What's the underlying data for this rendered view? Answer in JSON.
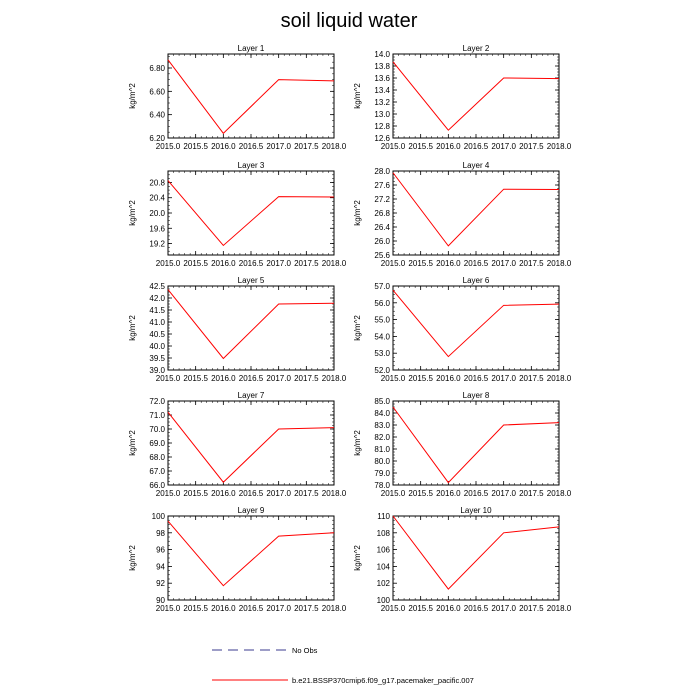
{
  "figure": {
    "title": "soil liquid water",
    "legend": [
      {
        "label": "No Obs",
        "style": "dashed",
        "color": "#3b3b8f"
      },
      {
        "label": "b.e21.BSSP370cmip6.f09_g17.pacemaker_pacific.007",
        "style": "solid",
        "color": "#ff0000"
      }
    ]
  },
  "chart_data": [
    {
      "type": "line",
      "title": "Layer 1",
      "ylabel": "kg/m^2",
      "x": [
        2015.0,
        2016.0,
        2017.0,
        2018.0
      ],
      "xlim": [
        2015.0,
        2018.0
      ],
      "xticks": [
        "2015.0",
        "2015.5",
        "2016.0",
        "2016.5",
        "2017.0",
        "2017.5",
        "2018.0"
      ],
      "ylim": [
        6.2,
        6.92
      ],
      "yticks": [
        "6.20",
        "6.40",
        "6.60",
        "6.80"
      ],
      "series": [
        {
          "color": "#ff0000",
          "values": [
            6.87,
            6.24,
            6.7,
            6.69
          ]
        }
      ]
    },
    {
      "type": "line",
      "title": "Layer 2",
      "ylabel": "kg/m^2",
      "x": [
        2015.0,
        2016.0,
        2017.0,
        2018.0
      ],
      "xlim": [
        2015.0,
        2018.0
      ],
      "xticks": [
        "2015.0",
        "2015.5",
        "2016.0",
        "2016.5",
        "2017.0",
        "2017.5",
        "2018.0"
      ],
      "ylim": [
        12.6,
        14.0
      ],
      "yticks": [
        "12.6",
        "12.8",
        "13.0",
        "13.2",
        "13.4",
        "13.6",
        "13.8",
        "14.0"
      ],
      "series": [
        {
          "color": "#ff0000",
          "values": [
            13.87,
            12.73,
            13.6,
            13.59
          ]
        }
      ]
    },
    {
      "type": "line",
      "title": "Layer 3",
      "ylabel": "kg/m^2",
      "x": [
        2015.0,
        2016.0,
        2017.0,
        2018.0
      ],
      "xlim": [
        2015.0,
        2018.0
      ],
      "xticks": [
        "2015.0",
        "2015.5",
        "2016.0",
        "2016.5",
        "2017.0",
        "2017.5",
        "2018.0"
      ],
      "ylim": [
        18.9,
        21.1
      ],
      "yticks": [
        "19.2",
        "19.6",
        "20.0",
        "20.4",
        "20.8"
      ],
      "series": [
        {
          "color": "#ff0000",
          "values": [
            20.85,
            19.15,
            20.43,
            20.42
          ]
        }
      ]
    },
    {
      "type": "line",
      "title": "Layer 4",
      "ylabel": "kg/m^2",
      "x": [
        2015.0,
        2016.0,
        2017.0,
        2018.0
      ],
      "xlim": [
        2015.0,
        2018.0
      ],
      "xticks": [
        "2015.0",
        "2015.5",
        "2016.0",
        "2016.5",
        "2017.0",
        "2017.5",
        "2018.0"
      ],
      "ylim": [
        25.6,
        28.0
      ],
      "yticks": [
        "25.6",
        "26.0",
        "26.4",
        "26.8",
        "27.2",
        "27.6",
        "28.0"
      ],
      "series": [
        {
          "color": "#ff0000",
          "values": [
            27.95,
            25.86,
            27.48,
            27.47
          ]
        }
      ]
    },
    {
      "type": "line",
      "title": "Layer 5",
      "ylabel": "kg/m^2",
      "x": [
        2015.0,
        2016.0,
        2017.0,
        2018.0
      ],
      "xlim": [
        2015.0,
        2018.0
      ],
      "xticks": [
        "2015.0",
        "2015.5",
        "2016.0",
        "2016.5",
        "2017.0",
        "2017.5",
        "2018.0"
      ],
      "ylim": [
        39.0,
        42.5
      ],
      "yticks": [
        "39.0",
        "39.5",
        "40.0",
        "40.5",
        "41.0",
        "41.5",
        "42.0",
        "42.5"
      ],
      "series": [
        {
          "color": "#ff0000",
          "values": [
            42.35,
            39.48,
            41.75,
            41.78
          ]
        }
      ]
    },
    {
      "type": "line",
      "title": "Layer 6",
      "ylabel": "kg/m^2",
      "x": [
        2015.0,
        2016.0,
        2017.0,
        2018.0
      ],
      "xlim": [
        2015.0,
        2018.0
      ],
      "xticks": [
        "2015.0",
        "2015.5",
        "2016.0",
        "2016.5",
        "2017.0",
        "2017.5",
        "2018.0"
      ],
      "ylim": [
        52.0,
        57.0
      ],
      "yticks": [
        "52.0",
        "53.0",
        "54.0",
        "55.0",
        "56.0",
        "57.0"
      ],
      "series": [
        {
          "color": "#ff0000",
          "values": [
            56.75,
            52.8,
            55.85,
            55.92
          ]
        }
      ]
    },
    {
      "type": "line",
      "title": "Layer 7",
      "ylabel": "kg/m^2",
      "x": [
        2015.0,
        2016.0,
        2017.0,
        2018.0
      ],
      "xlim": [
        2015.0,
        2018.0
      ],
      "xticks": [
        "2015.0",
        "2015.5",
        "2016.0",
        "2016.5",
        "2017.0",
        "2017.5",
        "2018.0"
      ],
      "ylim": [
        66.0,
        72.0
      ],
      "yticks": [
        "66.0",
        "67.0",
        "68.0",
        "69.0",
        "70.0",
        "71.0",
        "72.0"
      ],
      "series": [
        {
          "color": "#ff0000",
          "values": [
            71.2,
            66.2,
            70.0,
            70.1
          ]
        }
      ]
    },
    {
      "type": "line",
      "title": "Layer 8",
      "ylabel": "kg/m^2",
      "x": [
        2015.0,
        2016.0,
        2017.0,
        2018.0
      ],
      "xlim": [
        2015.0,
        2018.0
      ],
      "xticks": [
        "2015.0",
        "2015.5",
        "2016.0",
        "2016.5",
        "2017.0",
        "2017.5",
        "2018.0"
      ],
      "ylim": [
        78.0,
        85.0
      ],
      "yticks": [
        "78.0",
        "79.0",
        "80.0",
        "81.0",
        "82.0",
        "83.0",
        "84.0",
        "85.0"
      ],
      "series": [
        {
          "color": "#ff0000",
          "values": [
            84.5,
            78.2,
            83.0,
            83.2
          ]
        }
      ]
    },
    {
      "type": "line",
      "title": "Layer 9",
      "ylabel": "kg/m^2",
      "x": [
        2015.0,
        2016.0,
        2017.0,
        2018.0
      ],
      "xlim": [
        2015.0,
        2018.0
      ],
      "xticks": [
        "2015.0",
        "2015.5",
        "2016.0",
        "2016.5",
        "2017.0",
        "2017.5",
        "2018.0"
      ],
      "ylim": [
        90.0,
        100.0
      ],
      "yticks": [
        "90",
        "92",
        "94",
        "96",
        "98",
        "100"
      ],
      "series": [
        {
          "color": "#ff0000",
          "values": [
            99.4,
            91.7,
            97.6,
            98.0
          ]
        }
      ]
    },
    {
      "type": "line",
      "title": "Layer 10",
      "ylabel": "kg/m^2",
      "x": [
        2015.0,
        2016.0,
        2017.0,
        2018.0
      ],
      "xlim": [
        2015.0,
        2018.0
      ],
      "xticks": [
        "2015.0",
        "2015.5",
        "2016.0",
        "2016.5",
        "2017.0",
        "2017.5",
        "2018.0"
      ],
      "ylim": [
        100.0,
        110.0
      ],
      "yticks": [
        "100",
        "102",
        "104",
        "106",
        "108",
        "110"
      ],
      "series": [
        {
          "color": "#ff0000",
          "values": [
            110.0,
            101.3,
            108.0,
            108.7
          ]
        }
      ]
    }
  ]
}
